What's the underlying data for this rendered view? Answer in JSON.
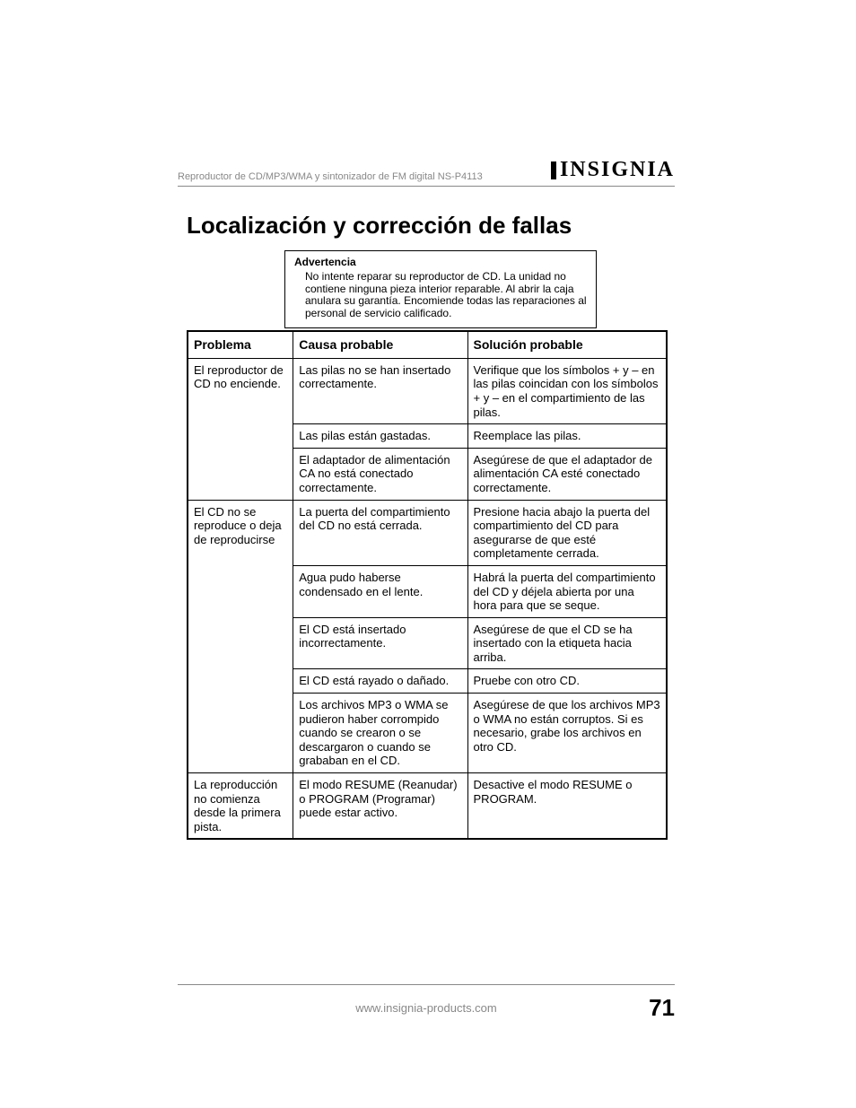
{
  "header": {
    "doc_title": "Reproductor de CD/MP3/WMA y sintonizador de FM digital NS-P4113",
    "brand": "INSIGNIA"
  },
  "title": "Localización y corrección de fallas",
  "warning": {
    "label": "Advertencia",
    "text": "No intente reparar su reproductor de CD. La unidad no contiene ninguna pieza interior reparable. Al abrir la caja anulara su garantía. Encomiende todas las reparaciones al personal de servicio calificado."
  },
  "table": {
    "columns": [
      "Problema",
      "Causa probable",
      "Solución probable"
    ],
    "groups": [
      {
        "problem": "El reproductor de CD no enciende.",
        "rows": [
          {
            "cause": "Las pilas no se han insertado correctamente.",
            "solution": "Verifique que los símbolos + y – en las pilas coincidan con los símbolos + y – en el compartimiento de las pilas."
          },
          {
            "cause": "Las pilas están gastadas.",
            "solution": "Reemplace las pilas."
          },
          {
            "cause": "El adaptador de alimentación CA no está conectado correctamente.",
            "solution": "Asegúrese de que el adaptador de alimentación CA esté conectado correctamente."
          }
        ]
      },
      {
        "problem": "El CD no se reproduce o deja de reproducirse",
        "rows": [
          {
            "cause": "La puerta del compartimiento del CD no está cerrada.",
            "solution": "Presione hacia abajo la puerta del compartimiento del CD para asegurarse de que esté completamente cerrada."
          },
          {
            "cause": "Agua pudo haberse condensado en el lente.",
            "solution": "Habrá la puerta del compartimiento del CD y déjela abierta por una hora para que se seque."
          },
          {
            "cause": "El CD está insertado incorrectamente.",
            "solution": "Asegúrese de que el CD se ha insertado con la etiqueta hacia arriba."
          },
          {
            "cause": "El CD está rayado o dañado.",
            "solution": "Pruebe con otro CD."
          },
          {
            "cause": "Los archivos MP3 o WMA se pudieron haber corrompido cuando se crearon o se descargaron o cuando se grababan en el CD.",
            "solution": "Asegúrese de que los archivos MP3 o WMA no están corruptos. Si es necesario, grabe los archivos en otro CD."
          }
        ]
      },
      {
        "problem": "La reproducción no comienza desde la primera pista.",
        "rows": [
          {
            "cause": "El modo RESUME (Reanudar) o PROGRAM (Programar) puede estar activo.",
            "solution": "Desactive el modo RESUME o PROGRAM."
          }
        ]
      }
    ]
  },
  "footer": {
    "url": "www.insignia-products.com",
    "page": "71"
  }
}
